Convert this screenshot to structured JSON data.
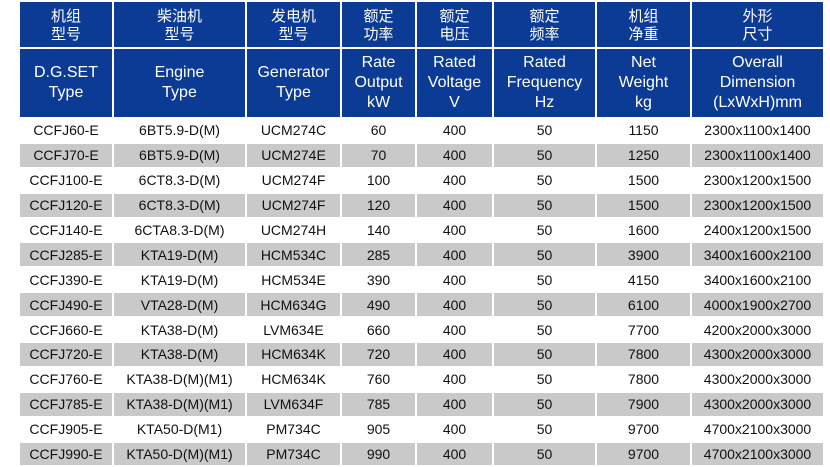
{
  "header_zh": [
    [
      "机组",
      "型号"
    ],
    [
      "柴油机",
      "型号"
    ],
    [
      "发电机",
      "型号"
    ],
    [
      "额定",
      "功率"
    ],
    [
      "额定",
      "电压"
    ],
    [
      "额定",
      "频率"
    ],
    [
      "机组",
      "净重"
    ],
    [
      "外形",
      "尺寸"
    ]
  ],
  "header_en": [
    [
      "D.G.SET",
      "Type"
    ],
    [
      "Engine",
      "Type"
    ],
    [
      "Generator",
      "Type"
    ],
    [
      "Rate",
      "Output",
      "kW"
    ],
    [
      "Rated",
      "Voltage",
      "V"
    ],
    [
      "Rated",
      "Frequency",
      "Hz"
    ],
    [
      "Net",
      "Weight",
      "kg"
    ],
    [
      "Overall",
      "Dimension",
      "(LxWxH)mm"
    ]
  ],
  "rows": [
    [
      "CCFJ60-E",
      "6BT5.9-D(M)",
      "UCM274C",
      "60",
      "400",
      "50",
      "1150",
      "2300x1100x1400"
    ],
    [
      "CCFJ70-E",
      "6BT5.9-D(M)",
      "UCM274E",
      "70",
      "400",
      "50",
      "1250",
      "2300x1100x1400"
    ],
    [
      "CCFJ100-E",
      "6CT8.3-D(M)",
      "UCM274F",
      "100",
      "400",
      "50",
      "1500",
      "2300x1200x1500"
    ],
    [
      "CCFJ120-E",
      "6CT8.3-D(M)",
      "UCM274F",
      "120",
      "400",
      "50",
      "1500",
      "2300x1200x1500"
    ],
    [
      "CCFJ140-E",
      "6CTA8.3-D(M)",
      "UCM274H",
      "140",
      "400",
      "50",
      "1600",
      "2400x1200x1500"
    ],
    [
      "CCFJ285-E",
      "KTA19-D(M)",
      "HCM534C",
      "285",
      "400",
      "50",
      "3900",
      "3400x1600x2100"
    ],
    [
      "CCFJ390-E",
      "KTA19-D(M)",
      "HCM534E",
      "390",
      "400",
      "50",
      "4150",
      "3400x1600x2100"
    ],
    [
      "CCFJ490-E",
      "VTA28-D(M)",
      "HCM634G",
      "490",
      "400",
      "50",
      "6100",
      "4000x1900x2700"
    ],
    [
      "CCFJ660-E",
      "KTA38-D(M)",
      "LVM634E",
      "660",
      "400",
      "50",
      "7700",
      "4200x2000x3000"
    ],
    [
      "CCFJ720-E",
      "KTA38-D(M)",
      "HCM634K",
      "720",
      "400",
      "50",
      "7800",
      "4300x2000x3000"
    ],
    [
      "CCFJ760-E",
      "KTA38-D(M)(M1)",
      "HCM634K",
      "760",
      "400",
      "50",
      "7800",
      "4300x2000x3000"
    ],
    [
      "CCFJ785-E",
      "KTA38-D(M)(M1)",
      "LVM634F",
      "785",
      "400",
      "50",
      "7900",
      "4300x2000x3000"
    ],
    [
      "CCFJ905-E",
      "KTA50-D(M1)",
      "PM734C",
      "905",
      "400",
      "50",
      "9700",
      "4700x2100x3000"
    ],
    [
      "CCFJ990-E",
      "KTA50-D(M)(M1)",
      "PM734C",
      "990",
      "400",
      "50",
      "9700",
      "4700x2100x3000"
    ]
  ],
  "colors": {
    "header_bg": "#0b3b94",
    "alt_row_bg": "#c9c9c9"
  }
}
